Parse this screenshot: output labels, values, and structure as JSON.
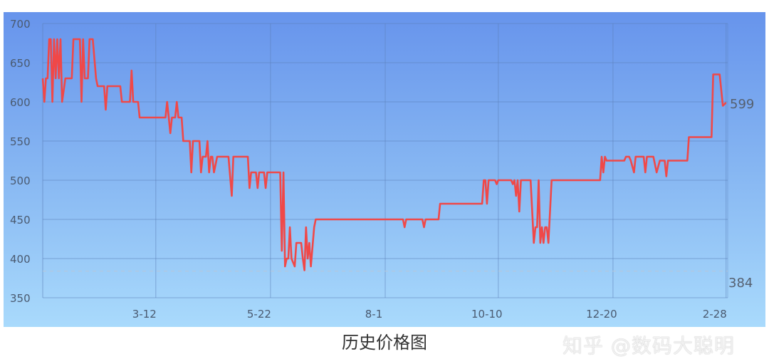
{
  "chart_data": {
    "type": "line",
    "title": "历史价格图",
    "xlabel": "",
    "ylabel": "",
    "ylim": [
      350,
      700
    ],
    "yticks": [
      700,
      650,
      600,
      550,
      500,
      450,
      400,
      350
    ],
    "xticks": [
      "3-12",
      "5-22",
      "8-1",
      "10-10",
      "12-20",
      "2-28"
    ],
    "xrange": [
      "1-1",
      "3-1"
    ],
    "grid": true,
    "line_color": "#f04848",
    "min_value": 384,
    "current_value": 599,
    "min_label": "384",
    "current_label": "599",
    "points": [
      [
        "1-1",
        630
      ],
      [
        "1-2",
        600
      ],
      [
        "1-3",
        630
      ],
      [
        "1-4",
        630
      ],
      [
        "1-5",
        680
      ],
      [
        "1-6",
        680
      ],
      [
        "1-7",
        600
      ],
      [
        "1-8",
        680
      ],
      [
        "1-9",
        630
      ],
      [
        "1-10",
        680
      ],
      [
        "1-11",
        630
      ],
      [
        "1-12",
        680
      ],
      [
        "1-13",
        600
      ],
      [
        "1-15",
        630
      ],
      [
        "1-19",
        630
      ],
      [
        "1-20",
        680
      ],
      [
        "1-24",
        680
      ],
      [
        "1-25",
        600
      ],
      [
        "1-26",
        680
      ],
      [
        "1-27",
        630
      ],
      [
        "1-29",
        630
      ],
      [
        "1-30",
        680
      ],
      [
        "2-1",
        680
      ],
      [
        "2-3",
        630
      ],
      [
        "2-4",
        620
      ],
      [
        "2-8",
        620
      ],
      [
        "2-9",
        590
      ],
      [
        "2-10",
        620
      ],
      [
        "2-18",
        620
      ],
      [
        "2-19",
        600
      ],
      [
        "2-24",
        600
      ],
      [
        "2-25",
        640
      ],
      [
        "2-26",
        600
      ],
      [
        "3-1",
        600
      ],
      [
        "3-2",
        580
      ],
      [
        "3-18",
        580
      ],
      [
        "3-19",
        600
      ],
      [
        "3-20",
        580
      ],
      [
        "3-21",
        560
      ],
      [
        "3-22",
        580
      ],
      [
        "3-24",
        580
      ],
      [
        "3-25",
        600
      ],
      [
        "3-26",
        580
      ],
      [
        "3-28",
        580
      ],
      [
        "3-29",
        550
      ],
      [
        "4-2",
        550
      ],
      [
        "4-3",
        510
      ],
      [
        "4-4",
        550
      ],
      [
        "4-8",
        550
      ],
      [
        "4-9",
        510
      ],
      [
        "4-10",
        530
      ],
      [
        "4-12",
        530
      ],
      [
        "4-13",
        550
      ],
      [
        "4-14",
        510
      ],
      [
        "4-15",
        530
      ],
      [
        "4-16",
        530
      ],
      [
        "4-17",
        510
      ],
      [
        "4-19",
        530
      ],
      [
        "4-26",
        530
      ],
      [
        "4-28",
        480
      ],
      [
        "4-29",
        530
      ],
      [
        "5-8",
        530
      ],
      [
        "5-9",
        490
      ],
      [
        "5-10",
        510
      ],
      [
        "5-13",
        510
      ],
      [
        "5-14",
        490
      ],
      [
        "5-15",
        510
      ],
      [
        "5-18",
        510
      ],
      [
        "5-19",
        490
      ],
      [
        "5-20",
        510
      ],
      [
        "5-28",
        510
      ],
      [
        "5-29",
        410
      ],
      [
        "5-30",
        510
      ],
      [
        "5-31",
        390
      ],
      [
        "6-1",
        400
      ],
      [
        "6-2",
        400
      ],
      [
        "6-3",
        440
      ],
      [
        "6-4",
        400
      ],
      [
        "6-6",
        390
      ],
      [
        "6-7",
        420
      ],
      [
        "6-10",
        420
      ],
      [
        "6-11",
        400
      ],
      [
        "6-12",
        385
      ],
      [
        "6-13",
        440
      ],
      [
        "6-14",
        400
      ],
      [
        "6-15",
        420
      ],
      [
        "6-16",
        390
      ],
      [
        "6-18",
        440
      ],
      [
        "6-19",
        450
      ],
      [
        "8-12",
        450
      ],
      [
        "8-13",
        440
      ],
      [
        "8-14",
        450
      ],
      [
        "8-24",
        450
      ],
      [
        "8-25",
        440
      ],
      [
        "8-26",
        450
      ],
      [
        "9-3",
        450
      ],
      [
        "9-4",
        470
      ],
      [
        "9-30",
        470
      ],
      [
        "10-1",
        500
      ],
      [
        "10-2",
        500
      ],
      [
        "10-3",
        470
      ],
      [
        "10-4",
        500
      ],
      [
        "10-8",
        500
      ],
      [
        "10-9",
        495
      ],
      [
        "10-10",
        500
      ],
      [
        "10-18",
        500
      ],
      [
        "10-19",
        495
      ],
      [
        "10-20",
        500
      ],
      [
        "10-21",
        480
      ],
      [
        "10-22",
        500
      ],
      [
        "10-23",
        460
      ],
      [
        "10-24",
        500
      ],
      [
        "10-30",
        500
      ],
      [
        "11-1",
        420
      ],
      [
        "11-2",
        440
      ],
      [
        "11-3",
        440
      ],
      [
        "11-4",
        500
      ],
      [
        "11-5",
        420
      ],
      [
        "11-6",
        440
      ],
      [
        "11-7",
        420
      ],
      [
        "11-8",
        440
      ],
      [
        "11-9",
        440
      ],
      [
        "11-10",
        420
      ],
      [
        "11-12",
        500
      ],
      [
        "12-12",
        500
      ],
      [
        "12-13",
        530
      ],
      [
        "12-14",
        510
      ],
      [
        "12-15",
        530
      ],
      [
        "12-16",
        525
      ],
      [
        "12-27",
        525
      ],
      [
        "12-28",
        530
      ],
      [
        "12-30",
        530
      ],
      [
        "12-31",
        525
      ],
      [
        "1-2",
        510
      ],
      [
        "1-3",
        530
      ],
      [
        "1-8",
        530
      ],
      [
        "1-9",
        510
      ],
      [
        "1-10",
        530
      ],
      [
        "1-14",
        530
      ],
      [
        "1-16",
        510
      ],
      [
        "1-18",
        525
      ],
      [
        "1-21",
        525
      ],
      [
        "1-22",
        505
      ],
      [
        "1-23",
        525
      ],
      [
        "2-4",
        525
      ],
      [
        "2-5",
        555
      ],
      [
        "2-19",
        555
      ],
      [
        "2-20",
        635
      ],
      [
        "2-24",
        635
      ],
      [
        "2-26",
        595
      ],
      [
        "2-28",
        599
      ]
    ]
  },
  "watermark": "知乎 @数码大聪明",
  "colors": {
    "bg_top": "#6794ec",
    "bg_bottom": "#a9dafc",
    "line": "#f04848"
  }
}
